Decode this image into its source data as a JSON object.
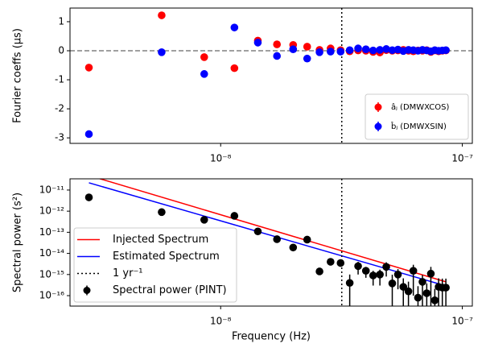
{
  "chart_data": [
    {
      "type": "scatter",
      "ylabel": "Fourier coeffs (μs)",
      "xscale": "log",
      "x": [
        2.85e-09,
        5.7e-09,
        8.55e-09,
        1.14e-08,
        1.425e-08,
        1.71e-08,
        1.995e-08,
        2.28e-08,
        2.565e-08,
        2.85e-08,
        3.135e-08,
        3.42e-08,
        3.705e-08,
        3.99e-08,
        4.275e-08,
        4.56e-08,
        4.845e-08,
        5.13e-08,
        5.415e-08,
        5.7e-08,
        5.985e-08,
        6.27e-08,
        6.555e-08,
        6.84e-08,
        7.125e-08,
        7.41e-08,
        7.695e-08,
        7.98e-08,
        8.265e-08,
        8.55e-08
      ],
      "series": [
        {
          "name": "âⱼ (DMWXCOS)",
          "color": "#ff0000",
          "style": "marker",
          "values": [
            -0.58,
            1.22,
            -0.22,
            -0.6,
            0.35,
            0.22,
            0.2,
            0.14,
            0.03,
            0.08,
            0.02,
            -0.02,
            0.01,
            0.0,
            -0.04,
            -0.06,
            0.02,
            0.0,
            0.01,
            0.03,
            0.0,
            -0.02,
            0.01,
            0.0,
            0.02,
            -0.04,
            0.01,
            -0.02,
            0.0,
            0.01
          ]
        },
        {
          "name": "b̂ⱼ (DMWXSIN)",
          "color": "#0000ff",
          "style": "marker",
          "values": [
            -2.87,
            -0.05,
            -0.8,
            0.8,
            0.28,
            -0.18,
            0.05,
            -0.27,
            -0.05,
            -0.03,
            -0.03,
            0.02,
            0.08,
            0.05,
            0.01,
            0.03,
            0.06,
            0.02,
            0.04,
            -0.01,
            0.03,
            0.02,
            0.0,
            0.03,
            0.01,
            -0.02,
            0.02,
            0.0,
            0.01,
            0.02
          ]
        }
      ],
      "hline": 0,
      "vline": 3.17e-08,
      "xlim": [
        2.38e-09,
        1.1e-07
      ],
      "xticks": [
        {
          "value": 1e-08,
          "label": "10⁻⁸"
        },
        {
          "value": 1e-07,
          "label": "10⁻⁷"
        }
      ],
      "ylim": [
        -3.19,
        1.47
      ],
      "yticks": [
        -3,
        -2,
        -1,
        0,
        1
      ],
      "legend": "lower right"
    },
    {
      "type": "scatter",
      "ylabel": "Spectral power (s²)",
      "xlabel": "Frequency (Hz)",
      "xscale": "log",
      "yscale": "log",
      "x": [
        2.85e-09,
        5.7e-09,
        8.55e-09,
        1.14e-08,
        1.425e-08,
        1.71e-08,
        1.995e-08,
        2.28e-08,
        2.565e-08,
        2.85e-08,
        3.135e-08,
        3.42e-08,
        3.705e-08,
        3.99e-08,
        4.275e-08,
        4.56e-08,
        4.845e-08,
        5.13e-08,
        5.415e-08,
        5.7e-08,
        5.985e-08,
        6.27e-08,
        6.555e-08,
        6.84e-08,
        7.125e-08,
        7.41e-08,
        7.695e-08,
        7.98e-08,
        8.265e-08,
        8.55e-08
      ],
      "series": [
        {
          "name": "Injected Spectrum",
          "color": "#ff0000",
          "style": "line",
          "x": [
            2.85e-09,
            8.55e-08
          ],
          "values": [
            4.9e-11,
            4.5e-16
          ]
        },
        {
          "name": "Estimated Spectrum",
          "color": "#0000ff",
          "style": "line",
          "x": [
            2.85e-09,
            8.55e-08
          ],
          "values": [
            2.2e-11,
            2.9e-16
          ]
        },
        {
          "name": "1 yr⁻¹",
          "color": "#000000",
          "style": "vline",
          "x": 3.17e-08
        },
        {
          "name": "Spectral power (PINT)",
          "color": "#000000",
          "style": "errorbar",
          "values": [
            4.5e-12,
            9e-13,
            3.9e-13,
            6e-13,
            1.1e-13,
            4.7e-14,
            1.9e-14,
            4.5e-14,
            1.4e-15,
            4e-15,
            3.5e-15,
            4e-16,
            2.5e-15,
            1.5e-15,
            9e-16,
            1e-15,
            2.3e-15,
            3.8e-16,
            1e-15,
            2.6e-16,
            1.6e-16,
            1.5e-15,
            8e-17,
            4.5e-16,
            1.3e-16,
            1.1e-15,
            6e-17,
            2.6e-16,
            2.4e-16,
            2.4e-16
          ],
          "yerr": [
            4e-13,
            9e-14,
            4e-14,
            6e-14,
            1e-14,
            5e-15,
            2e-15,
            5e-15,
            4e-16,
            6e-16,
            5e-16,
            6e-16,
            1.5e-15,
            8e-16,
            6e-16,
            7e-16,
            1.5e-15,
            6e-16,
            8e-16,
            4e-16,
            3e-16,
            1.4e-15,
            2e-16,
            5e-16,
            2.5e-16,
            1.2e-15,
            1.5e-16,
            4e-16,
            4e-16,
            4e-16
          ]
        }
      ],
      "xlim": [
        2.38e-09,
        1.1e-07
      ],
      "xticks": [
        {
          "value": 1e-08,
          "label": "10⁻⁸"
        },
        {
          "value": 1e-07,
          "label": "10⁻⁷"
        }
      ],
      "ylim": [
        3.2e-17,
        3.4e-11
      ],
      "yticks": [
        {
          "value": 1e-16,
          "label": "10⁻¹⁶"
        },
        {
          "value": 1e-15,
          "label": "10⁻¹⁵"
        },
        {
          "value": 1e-14,
          "label": "10⁻¹⁴"
        },
        {
          "value": 1e-13,
          "label": "10⁻¹³"
        },
        {
          "value": 1e-12,
          "label": "10⁻¹²"
        },
        {
          "value": 1e-11,
          "label": "10⁻¹¹"
        }
      ],
      "legend": "lower left"
    }
  ]
}
